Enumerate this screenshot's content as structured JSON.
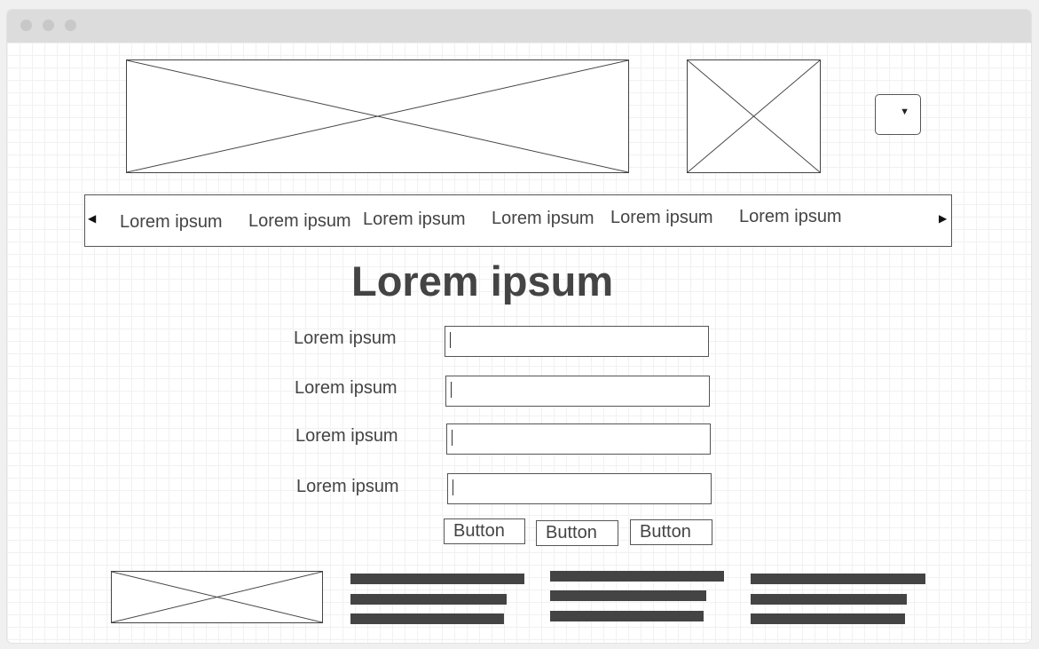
{
  "nav": {
    "tabs": [
      {
        "label": "Lorem ipsum"
      },
      {
        "label": "Lorem ipsum"
      },
      {
        "label": "Lorem ipsum"
      },
      {
        "label": "Lorem ipsum"
      },
      {
        "label": "Lorem ipsum"
      },
      {
        "label": "Lorem ipsum"
      }
    ],
    "prev_icon": "caret-left-icon",
    "next_icon": "caret-right-icon"
  },
  "dropdown": {
    "icon": "caret-down-icon"
  },
  "main": {
    "title": "Lorem ipsum",
    "form": {
      "fields": [
        {
          "label": "Lorem ipsum",
          "value": ""
        },
        {
          "label": "Lorem ipsum",
          "value": ""
        },
        {
          "label": "Lorem ipsum",
          "value": ""
        },
        {
          "label": "Lorem ipsum",
          "value": ""
        }
      ],
      "buttons": [
        {
          "label": "Button"
        },
        {
          "label": "Button"
        },
        {
          "label": "Button"
        }
      ]
    }
  },
  "colors": {
    "ink": "#444444",
    "titlebar": "#dcdcdc",
    "grid": "#f1f1f1"
  }
}
